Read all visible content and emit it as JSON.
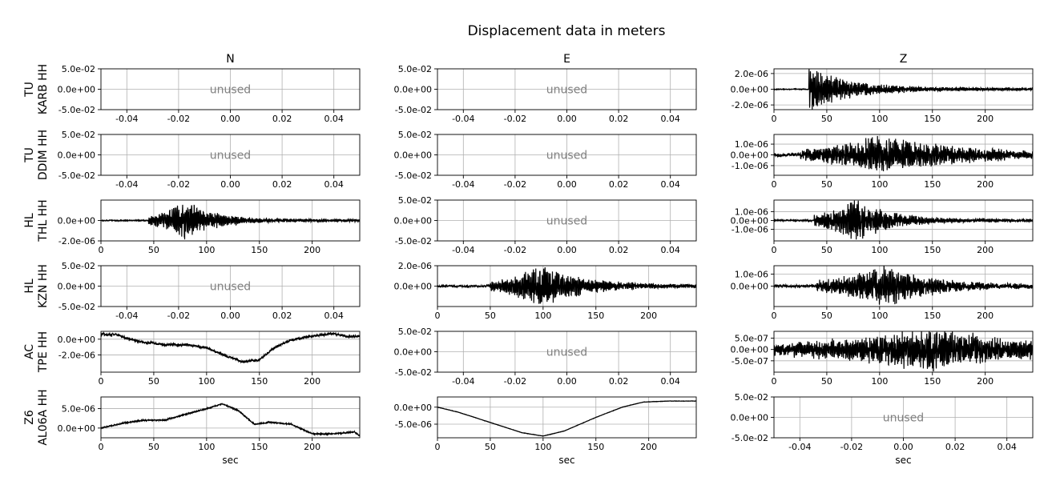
{
  "figure": {
    "title": "Displacement data in meters",
    "columns": [
      "N",
      "E",
      "Z"
    ],
    "rows": [
      [
        "TU",
        "KARB HH"
      ],
      [
        "TU",
        "DDIM HH"
      ],
      [
        "HL",
        "THL HH"
      ],
      [
        "HL",
        "KZN HH"
      ],
      [
        "AC",
        "TPE HH"
      ],
      [
        "Z6",
        "AL06A HH"
      ]
    ],
    "xlabel": "sec",
    "unused_label": "unused",
    "colors": {
      "trace": "#000000",
      "grid": "#b0b0b0",
      "unused_text": "#808080"
    }
  },
  "chart_data": {
    "type": "line",
    "unused_axes": {
      "xlim": [
        -0.05,
        0.05
      ],
      "ylim": [
        -0.05,
        0.05
      ],
      "xticks": [
        "-0.04",
        "-0.02",
        "0.00",
        "0.02",
        "0.04"
      ],
      "yticks": [
        "5.0e-02",
        "0.0e+00",
        "-5.0e-02"
      ]
    },
    "panels": [
      {
        "row": 0,
        "col": 2,
        "xlim": [
          0,
          245
        ],
        "ylim": [
          -2.6e-06,
          2.6e-06
        ],
        "yticks": [
          "2.0e-06",
          "0.0e+00",
          "-2.0e-06"
        ],
        "onset": 33,
        "peak": 33,
        "amp": 2.6e-06,
        "tail": 90,
        "noise": 6e-08
      },
      {
        "row": 1,
        "col": 2,
        "xlim": [
          0,
          245
        ],
        "ylim": [
          -1.9e-06,
          1.9e-06
        ],
        "yticks": [
          "1.0e-06",
          "0.0e+00",
          "-1.0e-06"
        ],
        "onset": 25,
        "peak": 100,
        "amp": 1.8e-06,
        "tail": 160,
        "noise": 2e-07
      },
      {
        "row": 2,
        "col": 0,
        "xlim": [
          0,
          245
        ],
        "ylim": [
          -2e-06,
          2e-06
        ],
        "yticks": [
          "0.0e+00",
          "-2.0e-06"
        ],
        "onset": 45,
        "peak": 80,
        "amp": 1.9e-06,
        "tail": 60,
        "noise": 6e-08
      },
      {
        "row": 2,
        "col": 2,
        "xlim": [
          0,
          245
        ],
        "ylim": [
          -2.3e-06,
          2.3e-06
        ],
        "yticks": [
          "1.0e-06",
          "0.0e+00",
          "-1.0e-06"
        ],
        "onset": 38,
        "peak": 78,
        "amp": 2.3e-06,
        "tail": 70,
        "noise": 1e-07
      },
      {
        "row": 3,
        "col": 1,
        "xlim": [
          0,
          245
        ],
        "ylim": [
          -2e-06,
          2e-06
        ],
        "yticks": [
          "2.0e-06",
          "0.0e+00"
        ],
        "onset": 50,
        "peak": 100,
        "amp": 2e-06,
        "tail": 80,
        "noise": 1.2e-07
      },
      {
        "row": 3,
        "col": 2,
        "xlim": [
          0,
          245
        ],
        "ylim": [
          -1.7e-06,
          1.7e-06
        ],
        "yticks": [
          "1.0e-06",
          "0.0e+00"
        ],
        "onset": 40,
        "peak": 105,
        "amp": 1.7e-06,
        "tail": 90,
        "noise": 1.5e-07
      },
      {
        "row": 4,
        "col": 0,
        "xlim": [
          0,
          245
        ],
        "ylim": [
          -4.2e-06,
          1e-06
        ],
        "yticks": [
          "0.0e+00",
          "-2.0e-06"
        ],
        "noise": 2e-07,
        "trend": [
          [
            0,
            6e-07
          ],
          [
            15,
            6e-07
          ],
          [
            25,
            1e-07
          ],
          [
            40,
            -4e-07
          ],
          [
            60,
            -7e-07
          ],
          [
            80,
            -7e-07
          ],
          [
            100,
            -1.1e-06
          ],
          [
            120,
            -2.2e-06
          ],
          [
            135,
            -2.9e-06
          ],
          [
            150,
            -2.6e-06
          ],
          [
            165,
            -1e-06
          ],
          [
            180,
            -1e-07
          ],
          [
            200,
            4e-07
          ],
          [
            220,
            7e-07
          ],
          [
            235,
            3e-07
          ],
          [
            245,
            4e-07
          ]
        ]
      },
      {
        "row": 4,
        "col": 2,
        "xlim": [
          0,
          245
        ],
        "ylim": [
          -1e-06,
          8e-07
        ],
        "yticks": [
          "5.0e-07",
          "0.0e+00",
          "-5.0e-07"
        ],
        "onset": 0,
        "peak": 150,
        "amp": 9e-07,
        "tail": 200,
        "noise": 1.5e-07
      },
      {
        "row": 5,
        "col": 0,
        "xlim": [
          0,
          245
        ],
        "ylim": [
          -2.5e-06,
          8e-06
        ],
        "yticks": [
          "5.0e-06",
          "0.0e+00"
        ],
        "noise": 2e-07,
        "trend": [
          [
            0,
            0
          ],
          [
            20,
            1.2e-06
          ],
          [
            40,
            2e-06
          ],
          [
            60,
            2e-06
          ],
          [
            80,
            3.5e-06
          ],
          [
            100,
            5e-06
          ],
          [
            115,
            6.2e-06
          ],
          [
            130,
            4.5e-06
          ],
          [
            145,
            1e-06
          ],
          [
            160,
            1.5e-06
          ],
          [
            180,
            1e-06
          ],
          [
            200,
            -1.5e-06
          ],
          [
            220,
            -1.5e-06
          ],
          [
            240,
            -1e-06
          ],
          [
            245,
            -2e-06
          ]
        ]
      },
      {
        "row": 5,
        "col": 1,
        "xlim": [
          0,
          245
        ],
        "ylim": [
          -9e-06,
          3e-06
        ],
        "yticks": [
          "0.0e+00",
          "-5.0e-06"
        ],
        "noise": 6e-08,
        "trend": [
          [
            0,
            0
          ],
          [
            20,
            -1.5e-06
          ],
          [
            50,
            -4.5e-06
          ],
          [
            80,
            -7.5e-06
          ],
          [
            100,
            -8.5e-06
          ],
          [
            120,
            -7e-06
          ],
          [
            150,
            -3e-06
          ],
          [
            175,
            0
          ],
          [
            195,
            1.5e-06
          ],
          [
            220,
            1.8e-06
          ],
          [
            245,
            1.8e-06
          ]
        ]
      }
    ],
    "xticks_time": [
      "0",
      "50",
      "100",
      "150",
      "200"
    ]
  }
}
